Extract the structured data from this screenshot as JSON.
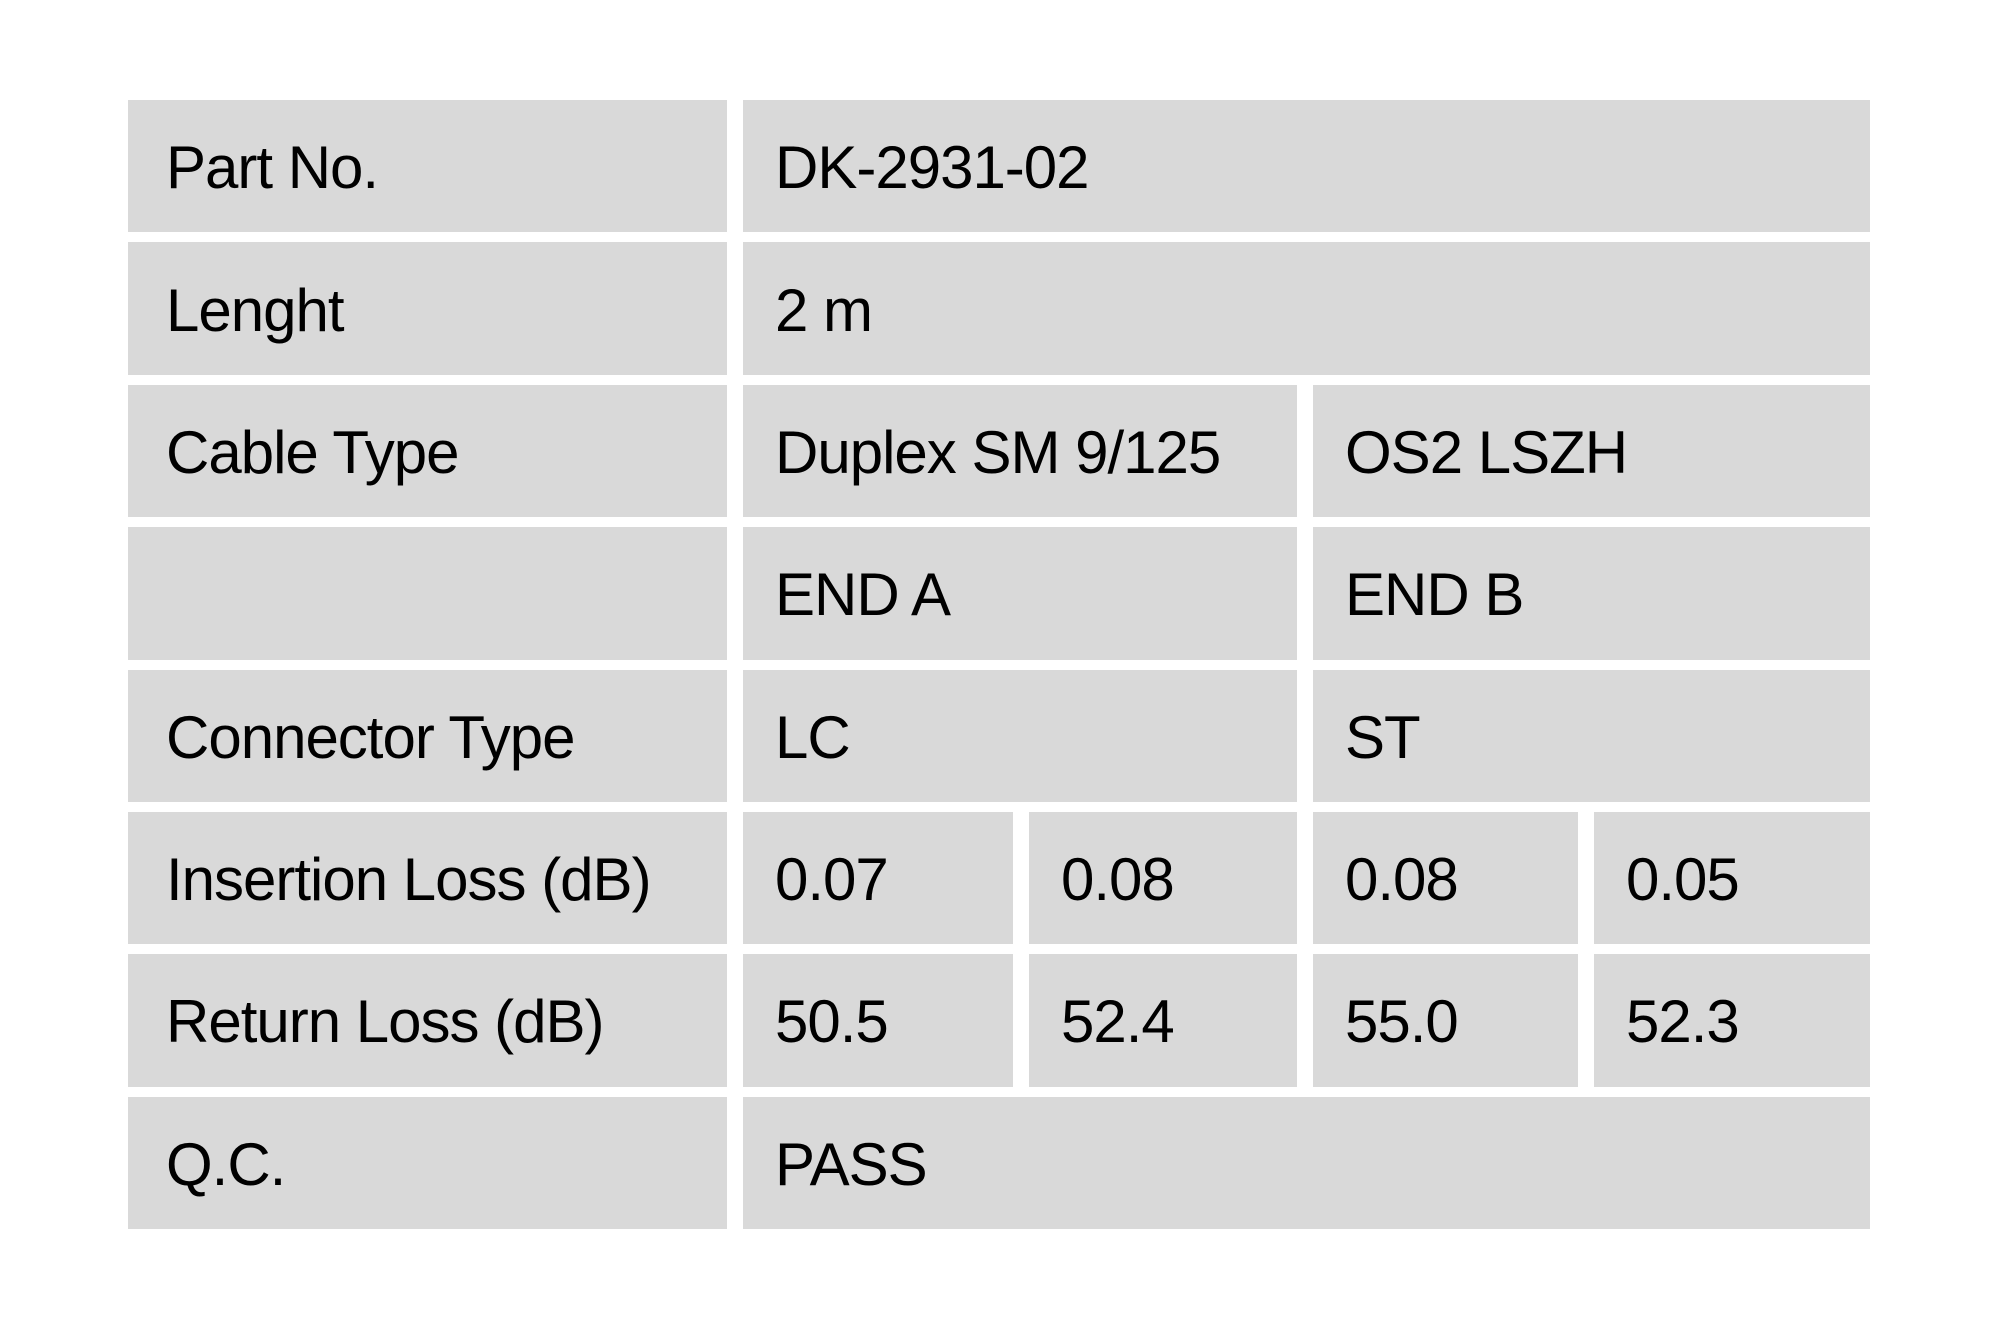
{
  "page": {
    "background": "#ffffff"
  },
  "table": {
    "cell_background": "#d9d9d9",
    "text_color": "#000000",
    "rows": [
      {
        "label": "Part No.",
        "cells": [
          {
            "text": "DK-2931-02",
            "span": 4
          }
        ]
      },
      {
        "label": "Lenght",
        "cells": [
          {
            "text": "2 m",
            "span": 4
          }
        ]
      },
      {
        "label": "Cable Type",
        "cells": [
          {
            "text": "Duplex SM 9/125",
            "span": 2
          },
          {
            "text": "OS2 LSZH",
            "span": 2
          }
        ]
      },
      {
        "label": "",
        "cells": [
          {
            "text": "END A",
            "span": 2
          },
          {
            "text": "END B",
            "span": 2
          }
        ]
      },
      {
        "label": "Connector Type",
        "cells": [
          {
            "text": "LC",
            "span": 2
          },
          {
            "text": "ST",
            "span": 2
          }
        ]
      },
      {
        "label": "Insertion Loss (dB)",
        "cells": [
          {
            "text": "0.07",
            "span": 1
          },
          {
            "text": "0.08",
            "span": 1
          },
          {
            "text": "0.08",
            "span": 1
          },
          {
            "text": "0.05",
            "span": 1
          }
        ]
      },
      {
        "label": "Return Loss (dB)",
        "cells": [
          {
            "text": "50.5",
            "span": 1
          },
          {
            "text": "52.4",
            "span": 1
          },
          {
            "text": "55.0",
            "span": 1
          },
          {
            "text": "52.3",
            "span": 1
          }
        ]
      },
      {
        "label": "Q.C.",
        "cells": [
          {
            "text": "PASS",
            "span": 4
          }
        ]
      }
    ]
  }
}
